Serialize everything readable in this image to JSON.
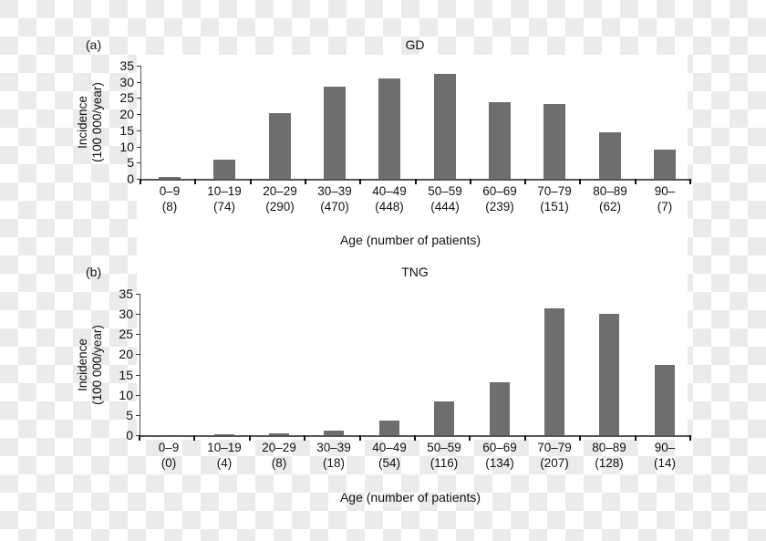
{
  "chart_data": [
    {
      "type": "bar",
      "panel": "(a)",
      "title": "GD",
      "xlabel": "Age (number of patients)",
      "ylabel": "Incidence (100 000/year)",
      "ylabel_line1": "Incidence",
      "ylabel_line2": "(100 000/year)",
      "ylim": [
        0,
        35
      ],
      "yticks": [
        "35",
        "30",
        "25",
        "20",
        "15",
        "10",
        "5",
        "0"
      ],
      "categories": [
        "0–9",
        "10–19",
        "20–29",
        "30–39",
        "40–49",
        "50–59",
        "60–69",
        "70–79",
        "80–89",
        "90–"
      ],
      "patients": [
        "(8)",
        "(74)",
        "(290)",
        "(470)",
        "(448)",
        "(444)",
        "(239)",
        "(151)",
        "(62)",
        "(7)"
      ],
      "values": [
        0.7,
        5.8,
        20.3,
        28.5,
        31.0,
        32.5,
        23.8,
        23.2,
        14.5,
        8.9
      ],
      "bar_color": "#6e6e6e",
      "grid": false,
      "legend": "none"
    },
    {
      "type": "bar",
      "panel": "(b)",
      "title": "TNG",
      "xlabel": "Age (number of patients)",
      "ylabel": "Incidence (100 000/year)",
      "ylabel_line1": "Incidence",
      "ylabel_line2": "(100 000/year)",
      "ylim": [
        0,
        35
      ],
      "yticks": [
        "35",
        "30",
        "25",
        "20",
        "15",
        "10",
        "5",
        "0"
      ],
      "categories": [
        "0–9",
        "10–19",
        "20–29",
        "30–39",
        "40–49",
        "50–59",
        "60–69",
        "70–79",
        "80–89",
        "90–"
      ],
      "patients": [
        "(0)",
        "(4)",
        "(8)",
        "(18)",
        "(54)",
        "(116)",
        "(134)",
        "(207)",
        "(128)",
        "(14)"
      ],
      "values": [
        0,
        0.3,
        0.4,
        1.1,
        3.7,
        8.4,
        13.2,
        31.4,
        30.0,
        17.5
      ],
      "bar_color": "#6e6e6e",
      "grid": false,
      "legend": "none"
    }
  ]
}
